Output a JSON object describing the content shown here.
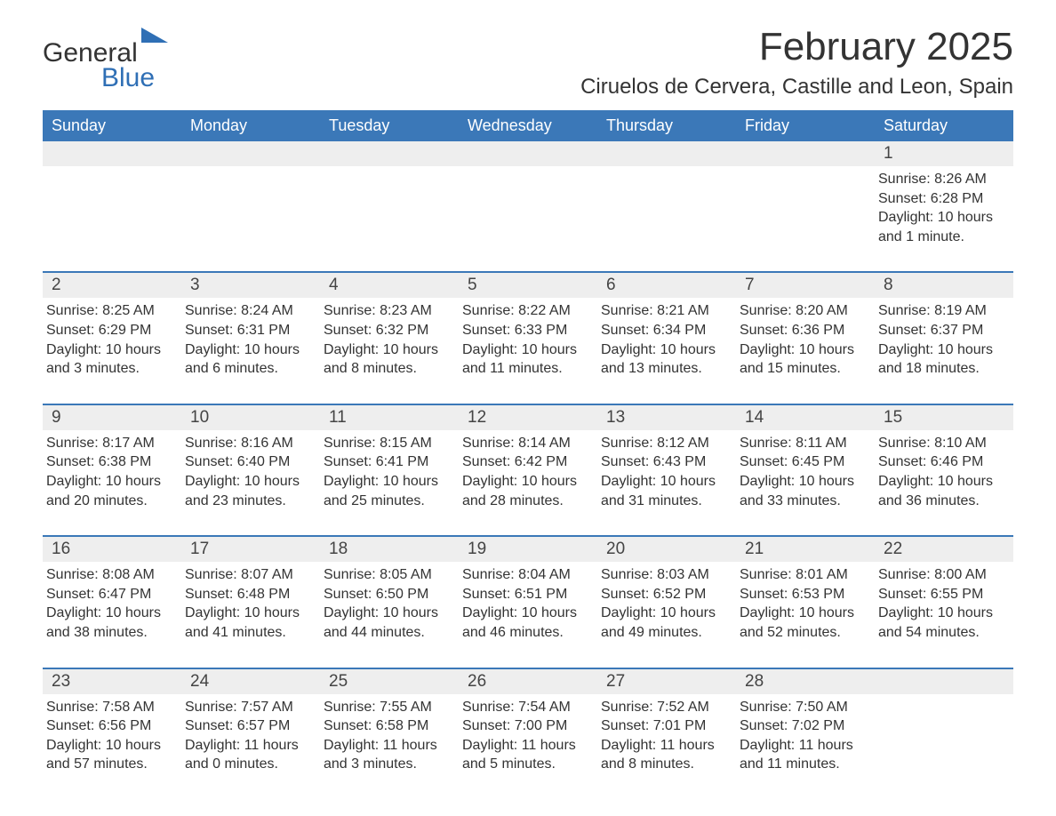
{
  "logo": {
    "text1": "General",
    "text2": "Blue"
  },
  "title": "February 2025",
  "location": "Ciruelos de Cervera, Castille and Leon, Spain",
  "colors": {
    "header_bg": "#3b78b8",
    "header_text": "#ffffff",
    "strip_bg": "#eeeeee",
    "text": "#333333",
    "accent": "#2f6fb5"
  },
  "weekdays": [
    "Sunday",
    "Monday",
    "Tuesday",
    "Wednesday",
    "Thursday",
    "Friday",
    "Saturday"
  ],
  "weeks": [
    [
      null,
      null,
      null,
      null,
      null,
      null,
      {
        "n": "1",
        "sunrise": "Sunrise: 8:26 AM",
        "sunset": "Sunset: 6:28 PM",
        "day1": "Daylight: 10 hours",
        "day2": "and 1 minute."
      }
    ],
    [
      {
        "n": "2",
        "sunrise": "Sunrise: 8:25 AM",
        "sunset": "Sunset: 6:29 PM",
        "day1": "Daylight: 10 hours",
        "day2": "and 3 minutes."
      },
      {
        "n": "3",
        "sunrise": "Sunrise: 8:24 AM",
        "sunset": "Sunset: 6:31 PM",
        "day1": "Daylight: 10 hours",
        "day2": "and 6 minutes."
      },
      {
        "n": "4",
        "sunrise": "Sunrise: 8:23 AM",
        "sunset": "Sunset: 6:32 PM",
        "day1": "Daylight: 10 hours",
        "day2": "and 8 minutes."
      },
      {
        "n": "5",
        "sunrise": "Sunrise: 8:22 AM",
        "sunset": "Sunset: 6:33 PM",
        "day1": "Daylight: 10 hours",
        "day2": "and 11 minutes."
      },
      {
        "n": "6",
        "sunrise": "Sunrise: 8:21 AM",
        "sunset": "Sunset: 6:34 PM",
        "day1": "Daylight: 10 hours",
        "day2": "and 13 minutes."
      },
      {
        "n": "7",
        "sunrise": "Sunrise: 8:20 AM",
        "sunset": "Sunset: 6:36 PM",
        "day1": "Daylight: 10 hours",
        "day2": "and 15 minutes."
      },
      {
        "n": "8",
        "sunrise": "Sunrise: 8:19 AM",
        "sunset": "Sunset: 6:37 PM",
        "day1": "Daylight: 10 hours",
        "day2": "and 18 minutes."
      }
    ],
    [
      {
        "n": "9",
        "sunrise": "Sunrise: 8:17 AM",
        "sunset": "Sunset: 6:38 PM",
        "day1": "Daylight: 10 hours",
        "day2": "and 20 minutes."
      },
      {
        "n": "10",
        "sunrise": "Sunrise: 8:16 AM",
        "sunset": "Sunset: 6:40 PM",
        "day1": "Daylight: 10 hours",
        "day2": "and 23 minutes."
      },
      {
        "n": "11",
        "sunrise": "Sunrise: 8:15 AM",
        "sunset": "Sunset: 6:41 PM",
        "day1": "Daylight: 10 hours",
        "day2": "and 25 minutes."
      },
      {
        "n": "12",
        "sunrise": "Sunrise: 8:14 AM",
        "sunset": "Sunset: 6:42 PM",
        "day1": "Daylight: 10 hours",
        "day2": "and 28 minutes."
      },
      {
        "n": "13",
        "sunrise": "Sunrise: 8:12 AM",
        "sunset": "Sunset: 6:43 PM",
        "day1": "Daylight: 10 hours",
        "day2": "and 31 minutes."
      },
      {
        "n": "14",
        "sunrise": "Sunrise: 8:11 AM",
        "sunset": "Sunset: 6:45 PM",
        "day1": "Daylight: 10 hours",
        "day2": "and 33 minutes."
      },
      {
        "n": "15",
        "sunrise": "Sunrise: 8:10 AM",
        "sunset": "Sunset: 6:46 PM",
        "day1": "Daylight: 10 hours",
        "day2": "and 36 minutes."
      }
    ],
    [
      {
        "n": "16",
        "sunrise": "Sunrise: 8:08 AM",
        "sunset": "Sunset: 6:47 PM",
        "day1": "Daylight: 10 hours",
        "day2": "and 38 minutes."
      },
      {
        "n": "17",
        "sunrise": "Sunrise: 8:07 AM",
        "sunset": "Sunset: 6:48 PM",
        "day1": "Daylight: 10 hours",
        "day2": "and 41 minutes."
      },
      {
        "n": "18",
        "sunrise": "Sunrise: 8:05 AM",
        "sunset": "Sunset: 6:50 PM",
        "day1": "Daylight: 10 hours",
        "day2": "and 44 minutes."
      },
      {
        "n": "19",
        "sunrise": "Sunrise: 8:04 AM",
        "sunset": "Sunset: 6:51 PM",
        "day1": "Daylight: 10 hours",
        "day2": "and 46 minutes."
      },
      {
        "n": "20",
        "sunrise": "Sunrise: 8:03 AM",
        "sunset": "Sunset: 6:52 PM",
        "day1": "Daylight: 10 hours",
        "day2": "and 49 minutes."
      },
      {
        "n": "21",
        "sunrise": "Sunrise: 8:01 AM",
        "sunset": "Sunset: 6:53 PM",
        "day1": "Daylight: 10 hours",
        "day2": "and 52 minutes."
      },
      {
        "n": "22",
        "sunrise": "Sunrise: 8:00 AM",
        "sunset": "Sunset: 6:55 PM",
        "day1": "Daylight: 10 hours",
        "day2": "and 54 minutes."
      }
    ],
    [
      {
        "n": "23",
        "sunrise": "Sunrise: 7:58 AM",
        "sunset": "Sunset: 6:56 PM",
        "day1": "Daylight: 10 hours",
        "day2": "and 57 minutes."
      },
      {
        "n": "24",
        "sunrise": "Sunrise: 7:57 AM",
        "sunset": "Sunset: 6:57 PM",
        "day1": "Daylight: 11 hours",
        "day2": "and 0 minutes."
      },
      {
        "n": "25",
        "sunrise": "Sunrise: 7:55 AM",
        "sunset": "Sunset: 6:58 PM",
        "day1": "Daylight: 11 hours",
        "day2": "and 3 minutes."
      },
      {
        "n": "26",
        "sunrise": "Sunrise: 7:54 AM",
        "sunset": "Sunset: 7:00 PM",
        "day1": "Daylight: 11 hours",
        "day2": "and 5 minutes."
      },
      {
        "n": "27",
        "sunrise": "Sunrise: 7:52 AM",
        "sunset": "Sunset: 7:01 PM",
        "day1": "Daylight: 11 hours",
        "day2": "and 8 minutes."
      },
      {
        "n": "28",
        "sunrise": "Sunrise: 7:50 AM",
        "sunset": "Sunset: 7:02 PM",
        "day1": "Daylight: 11 hours",
        "day2": "and 11 minutes."
      },
      null
    ]
  ]
}
